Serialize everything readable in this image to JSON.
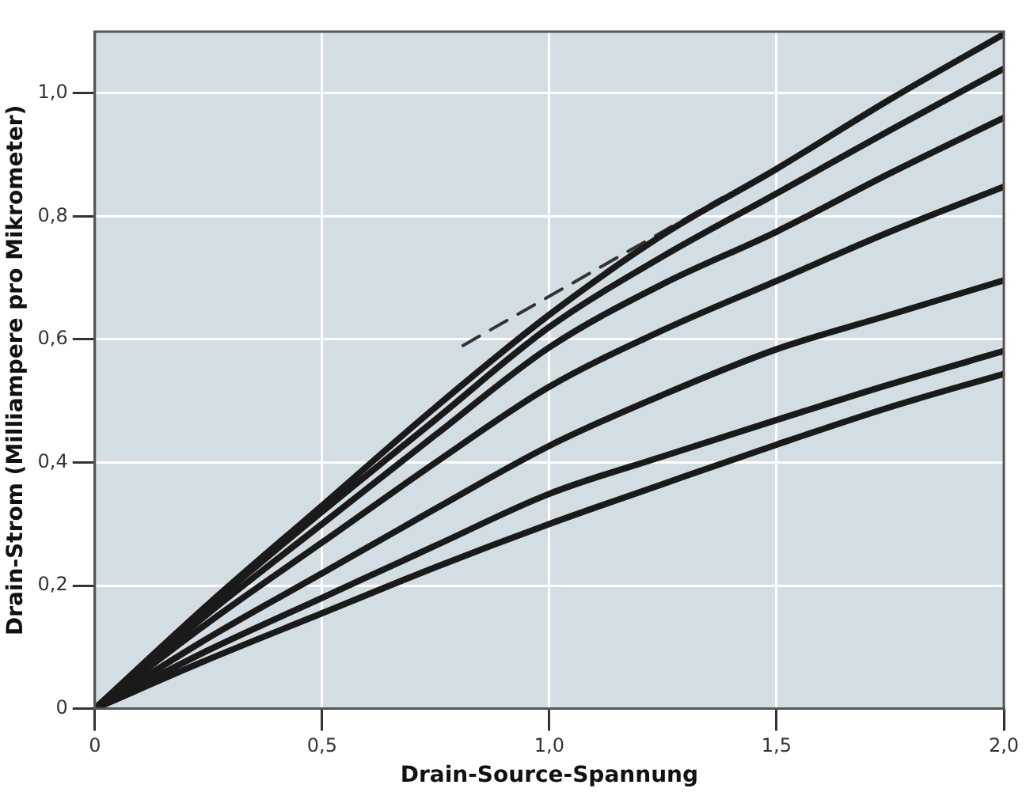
{
  "chart_data": {
    "type": "line",
    "xlabel": "Drain-Source-Spannung",
    "ylabel": "Drain-Strom (Milliampere pro Mikrometer)",
    "x": [
      0,
      0.25,
      0.5,
      0.75,
      1.0,
      1.25,
      1.5,
      1.75,
      2.0
    ],
    "series": [
      {
        "color": "#1a1a1a",
        "values": [
          0,
          0.17,
          0.33,
          0.49,
          0.64,
          0.77,
          0.877,
          0.99,
          1.096
        ]
      },
      {
        "color": "#1a1a1a",
        "values": [
          0,
          0.165,
          0.32,
          0.47,
          0.62,
          0.735,
          0.837,
          0.94,
          1.04
        ]
      },
      {
        "color": "#1a1a1a",
        "values": [
          0,
          0.155,
          0.3,
          0.445,
          0.587,
          0.69,
          0.775,
          0.87,
          0.96
        ]
      },
      {
        "color": "#1a1a1a",
        "values": [
          0,
          0.14,
          0.27,
          0.4,
          0.523,
          0.615,
          0.695,
          0.775,
          0.848
        ]
      },
      {
        "color": "#1a1a1a",
        "values": [
          0,
          0.115,
          0.22,
          0.325,
          0.427,
          0.51,
          0.584,
          0.64,
          0.696
        ]
      },
      {
        "color": "#1a1a1a",
        "values": [
          0,
          0.095,
          0.18,
          0.265,
          0.349,
          0.41,
          0.469,
          0.527,
          0.581
        ]
      },
      {
        "color": "#1a1a1a",
        "values": [
          0,
          0.08,
          0.155,
          0.23,
          0.3,
          0.365,
          0.429,
          0.49,
          0.544
        ]
      },
      {
        "color": "#333333",
        "x": [
          0.81,
          1.38
        ],
        "values": [
          0.59,
          0.83
        ],
        "line_style": "dashed"
      }
    ],
    "xlim": [
      0,
      2
    ],
    "xticks": [
      0,
      {
        "value": 0.5,
        "label": "0,5"
      },
      {
        "value": 1,
        "label": "1,0"
      },
      {
        "value": 1.5,
        "label": "1,5"
      },
      {
        "value": 2,
        "label": "2,0"
      }
    ],
    "ylim": [
      0,
      1.1
    ],
    "yticks": [
      0,
      {
        "value": 0.2,
        "label": "0,2"
      },
      {
        "value": 0.4,
        "label": "0,4"
      },
      {
        "value": 0.6,
        "label": "0,6"
      },
      {
        "value": 0.8,
        "label": "0,8"
      },
      {
        "value": 1,
        "label": "1,0"
      }
    ],
    "grid": true,
    "legend": false,
    "marker": "none",
    "line_style": "solid"
  }
}
